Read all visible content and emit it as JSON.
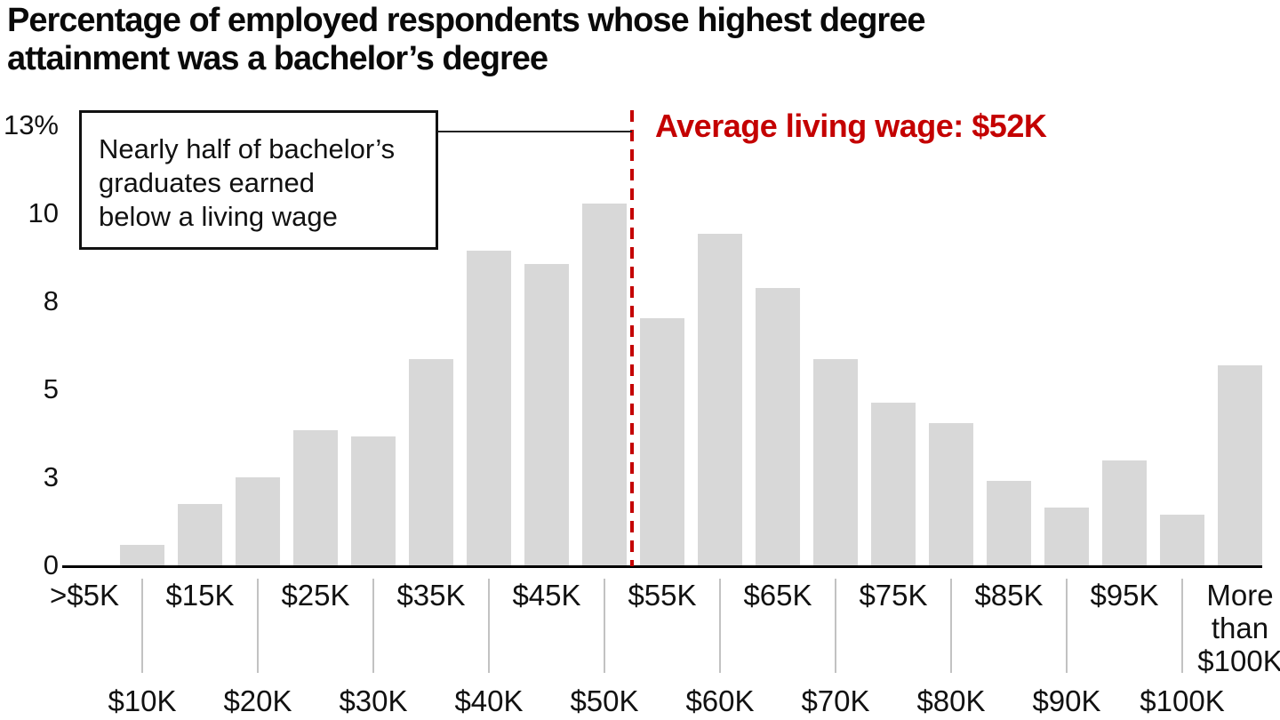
{
  "header": {
    "title_line1": "Percentage of employed respondents whose highest degree",
    "title_line2": "attainment was a bachelor’s degree"
  },
  "annotation_box": {
    "line1": "Nearly half of bachelor’s",
    "line2": "graduates earned",
    "line3": "below a living wage"
  },
  "reference_line": {
    "label": "Average living wage: $52K",
    "value": "$52K",
    "color": "#c40000",
    "style": "dashed-vertical"
  },
  "chart_data": {
    "type": "bar",
    "title": "Percentage of employed respondents whose highest degree attainment was a bachelor’s degree",
    "xlabel": "",
    "ylabel": "",
    "bar_color": "#d8d8d8",
    "grid": false,
    "ylim": [
      0,
      13
    ],
    "y_ticks": {
      "labels": [
        "13%",
        "10",
        "8",
        "5",
        "3",
        "0"
      ],
      "values": [
        13,
        10.4,
        7.8,
        5.2,
        2.6,
        0
      ]
    },
    "categories": [
      ">$5K",
      "$10K",
      "$15K",
      "$20K",
      "$25K",
      "$30K",
      "$35K",
      "$40K",
      "$45K",
      "$50K",
      "$55K",
      "$60K",
      "$65K",
      "$70K",
      "$75K",
      "$80K",
      "$85K",
      "$90K",
      "$95K",
      "$100K",
      "More than $100K"
    ],
    "values": [
      0,
      0.6,
      1.8,
      2.6,
      4.0,
      3.8,
      6.1,
      9.3,
      8.9,
      10.7,
      7.3,
      9.8,
      8.2,
      6.1,
      4.8,
      4.2,
      2.5,
      1.7,
      3.1,
      1.5,
      5.9
    ],
    "annotations": [
      "Nearly half of bachelor’s graduates earned below a living wage",
      "Average living wage: $52K"
    ],
    "reference_line_x": "$52K"
  }
}
